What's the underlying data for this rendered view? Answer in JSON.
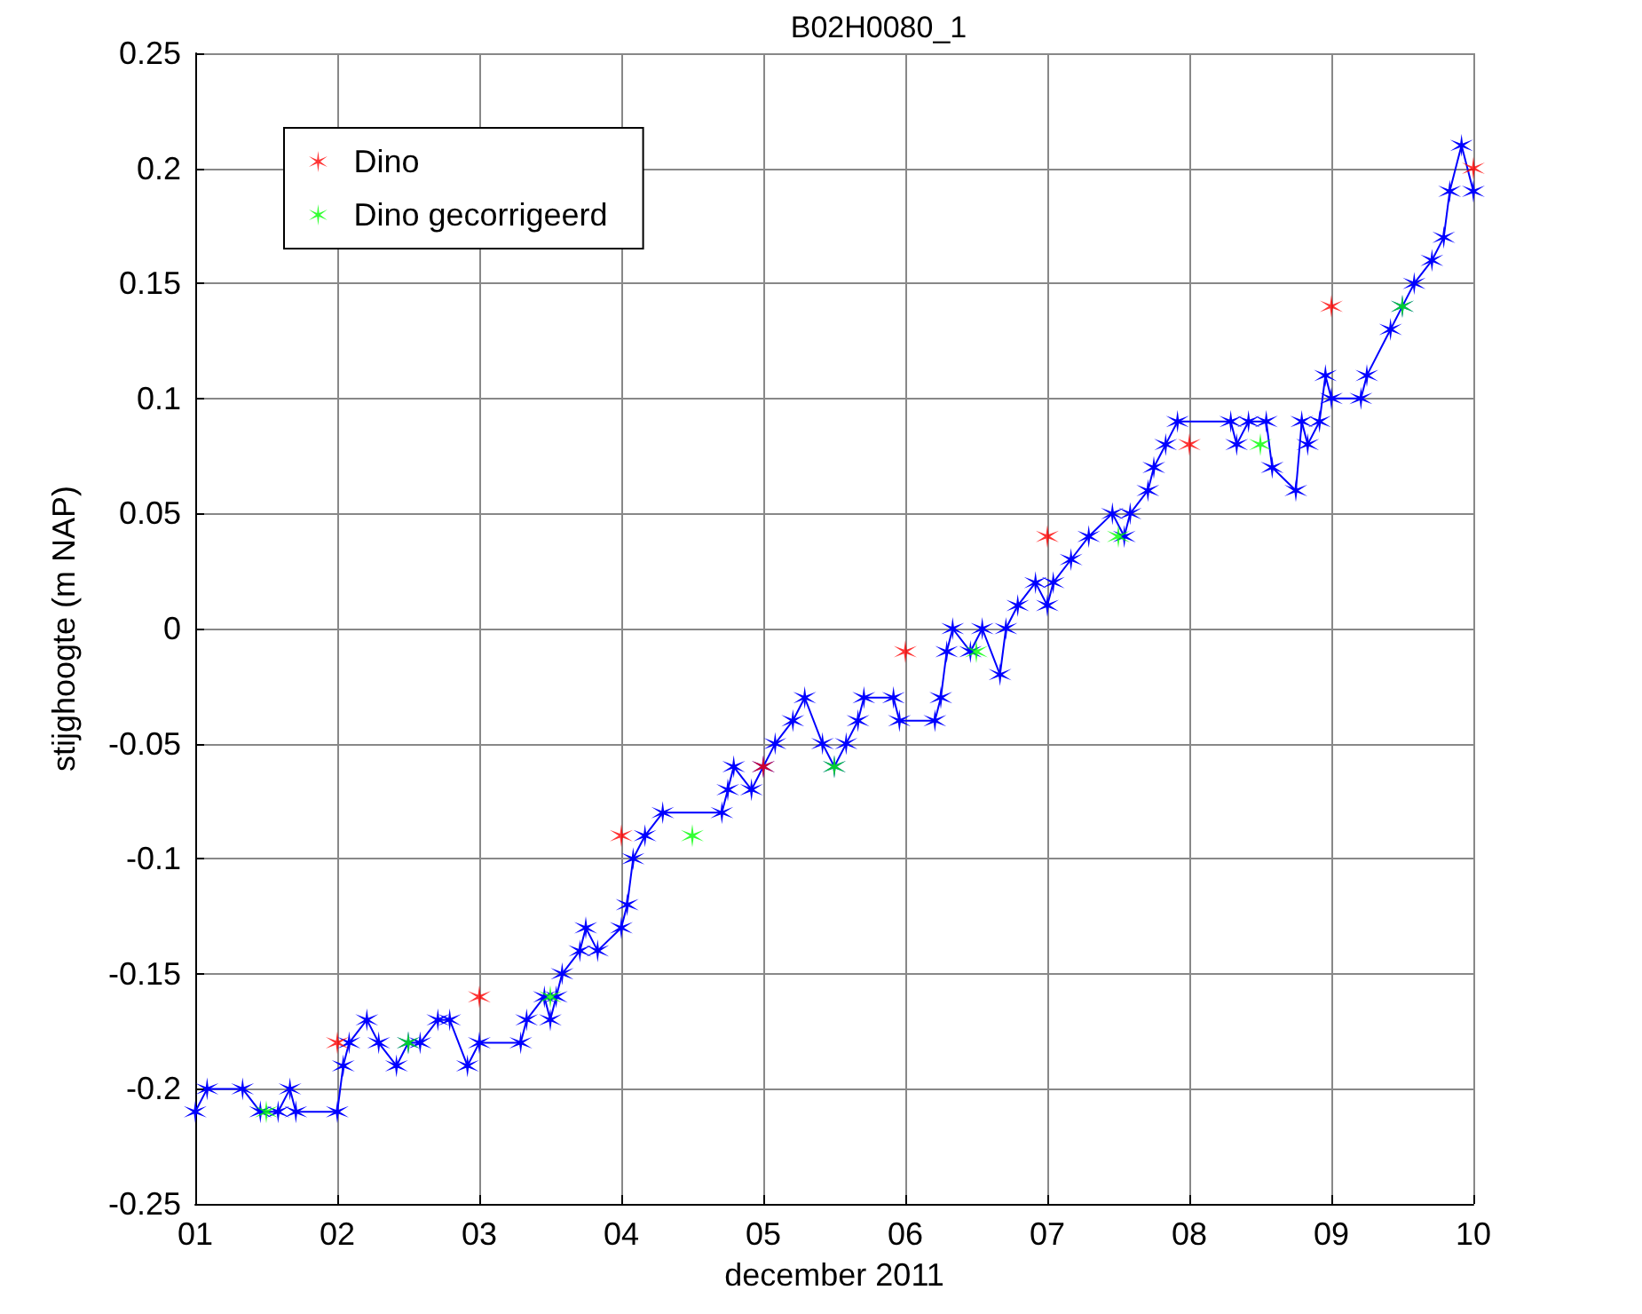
{
  "chart_data": {
    "type": "line",
    "title": "B02H0080_1",
    "xlabel": "december 2011",
    "ylabel": "stijghoogte (m NAP)",
    "xlim": [
      "2011-12-01",
      "2011-12-10"
    ],
    "xticks": [
      {
        "value": "2011-12-01",
        "label": "01"
      },
      {
        "value": "2011-12-02",
        "label": "02"
      },
      {
        "value": "2011-12-03",
        "label": "03"
      },
      {
        "value": "2011-12-04",
        "label": "04"
      },
      {
        "value": "2011-12-05",
        "label": "05"
      },
      {
        "value": "2011-12-06",
        "label": "06"
      },
      {
        "value": "2011-12-07",
        "label": "07"
      },
      {
        "value": "2011-12-08",
        "label": "08"
      },
      {
        "value": "2011-12-09",
        "label": "09"
      },
      {
        "value": "2011-12-10",
        "label": "10"
      }
    ],
    "ylim": [
      -0.25,
      0.25
    ],
    "yticks": [
      -0.25,
      -0.2,
      -0.15,
      -0.1,
      -0.05,
      0,
      0.05,
      0.1,
      0.15,
      0.2,
      0.25
    ],
    "grid": true,
    "legend": "top left",
    "marker": "cross",
    "series": [
      {
        "color": "#0000ff",
        "line_style": "solid",
        "x": [
          "2011-12-01T00:00",
          "2011-12-01T02:00",
          "2011-12-01T08:00",
          "2011-12-01T11:00",
          "2011-12-01T14:00",
          "2011-12-01T16:00",
          "2011-12-01T17:00",
          "2011-12-02T00:00",
          "2011-12-02T01:00",
          "2011-12-02T02:00",
          "2011-12-02T05:00",
          "2011-12-02T07:00",
          "2011-12-02T10:00",
          "2011-12-02T12:00",
          "2011-12-02T14:00",
          "2011-12-02T17:00",
          "2011-12-02T19:00",
          "2011-12-02T22:00",
          "2011-12-03T00:00",
          "2011-12-03T07:00",
          "2011-12-03T08:00",
          "2011-12-03T11:00",
          "2011-12-03T12:00",
          "2011-12-03T13:00",
          "2011-12-03T14:00",
          "2011-12-03T17:00",
          "2011-12-03T18:00",
          "2011-12-03T20:00",
          "2011-12-04T00:00",
          "2011-12-04T01:00",
          "2011-12-04T02:00",
          "2011-12-04T04:00",
          "2011-12-04T07:00",
          "2011-12-04T17:00",
          "2011-12-04T18:00",
          "2011-12-04T19:00",
          "2011-12-04T22:00",
          "2011-12-05T00:00",
          "2011-12-05T02:00",
          "2011-12-05T05:00",
          "2011-12-05T07:00",
          "2011-12-05T10:00",
          "2011-12-05T12:00",
          "2011-12-05T14:00",
          "2011-12-05T16:00",
          "2011-12-05T17:00",
          "2011-12-05T22:00",
          "2011-12-05T23:00",
          "2011-12-06T05:00",
          "2011-12-06T06:00",
          "2011-12-06T07:00",
          "2011-12-06T08:00",
          "2011-12-06T11:00",
          "2011-12-06T13:00",
          "2011-12-06T16:00",
          "2011-12-06T17:00",
          "2011-12-06T19:00",
          "2011-12-06T22:00",
          "2011-12-07T00:00",
          "2011-12-07T01:00",
          "2011-12-07T04:00",
          "2011-12-07T07:00",
          "2011-12-07T11:00",
          "2011-12-07T13:00",
          "2011-12-07T14:00",
          "2011-12-07T17:00",
          "2011-12-07T18:00",
          "2011-12-07T20:00",
          "2011-12-07T22:00",
          "2011-12-08T07:00",
          "2011-12-08T08:00",
          "2011-12-08T10:00",
          "2011-12-08T13:00",
          "2011-12-08T14:00",
          "2011-12-08T18:00",
          "2011-12-08T19:00",
          "2011-12-08T20:00",
          "2011-12-08T22:00",
          "2011-12-08T23:00",
          "2011-12-09T00:00",
          "2011-12-09T05:00",
          "2011-12-09T06:00",
          "2011-12-09T10:00",
          "2011-12-09T12:00",
          "2011-12-09T14:00",
          "2011-12-09T17:00",
          "2011-12-09T19:00",
          "2011-12-09T20:00",
          "2011-12-09T22:00",
          "2011-12-10T00:00"
        ],
        "values": [
          -0.21,
          -0.2,
          -0.2,
          -0.21,
          -0.21,
          -0.2,
          -0.21,
          -0.21,
          -0.19,
          -0.18,
          -0.17,
          -0.18,
          -0.19,
          -0.18,
          -0.18,
          -0.17,
          -0.17,
          -0.19,
          -0.18,
          -0.18,
          -0.17,
          -0.16,
          -0.17,
          -0.16,
          -0.15,
          -0.14,
          -0.13,
          -0.14,
          -0.13,
          -0.12,
          -0.1,
          -0.09,
          -0.08,
          -0.08,
          -0.07,
          -0.06,
          -0.07,
          -0.06,
          -0.05,
          -0.04,
          -0.03,
          -0.05,
          -0.06,
          -0.05,
          -0.04,
          -0.03,
          -0.03,
          -0.04,
          -0.04,
          -0.03,
          -0.01,
          0.0,
          -0.01,
          0.0,
          -0.02,
          0.0,
          0.01,
          0.02,
          0.01,
          0.02,
          0.03,
          0.04,
          0.05,
          0.04,
          0.05,
          0.06,
          0.07,
          0.08,
          0.09,
          0.09,
          0.08,
          0.09,
          0.09,
          0.07,
          0.06,
          0.09,
          0.08,
          0.09,
          0.11,
          0.1,
          0.1,
          0.11,
          0.13,
          0.14,
          0.15,
          0.16,
          0.17,
          0.19,
          0.21,
          0.19
        ]
      },
      {
        "type": "scatter",
        "name": "Dino",
        "color": "#ff0000",
        "x": [
          "2011-12-02T00:00",
          "2011-12-03T00:00",
          "2011-12-04T00:00",
          "2011-12-05T00:00",
          "2011-12-06T00:00",
          "2011-12-07T00:00",
          "2011-12-08T00:00",
          "2011-12-09T00:00",
          "2011-12-10T00:00"
        ],
        "values": [
          -0.18,
          -0.16,
          -0.09,
          -0.06,
          -0.01,
          0.04,
          0.08,
          0.14,
          0.2
        ]
      },
      {
        "type": "scatter",
        "name": "Dino gecorrigeerd",
        "color": "#00ff00",
        "x": [
          "2011-12-01T12:00",
          "2011-12-02T12:00",
          "2011-12-03T12:00",
          "2011-12-04T12:00",
          "2011-12-05T12:00",
          "2011-12-06T12:00",
          "2011-12-07T12:00",
          "2011-12-08T12:00",
          "2011-12-09T12:00"
        ],
        "values": [
          -0.21,
          -0.18,
          -0.16,
          -0.09,
          -0.06,
          -0.01,
          0.04,
          0.08,
          0.14
        ]
      }
    ]
  }
}
